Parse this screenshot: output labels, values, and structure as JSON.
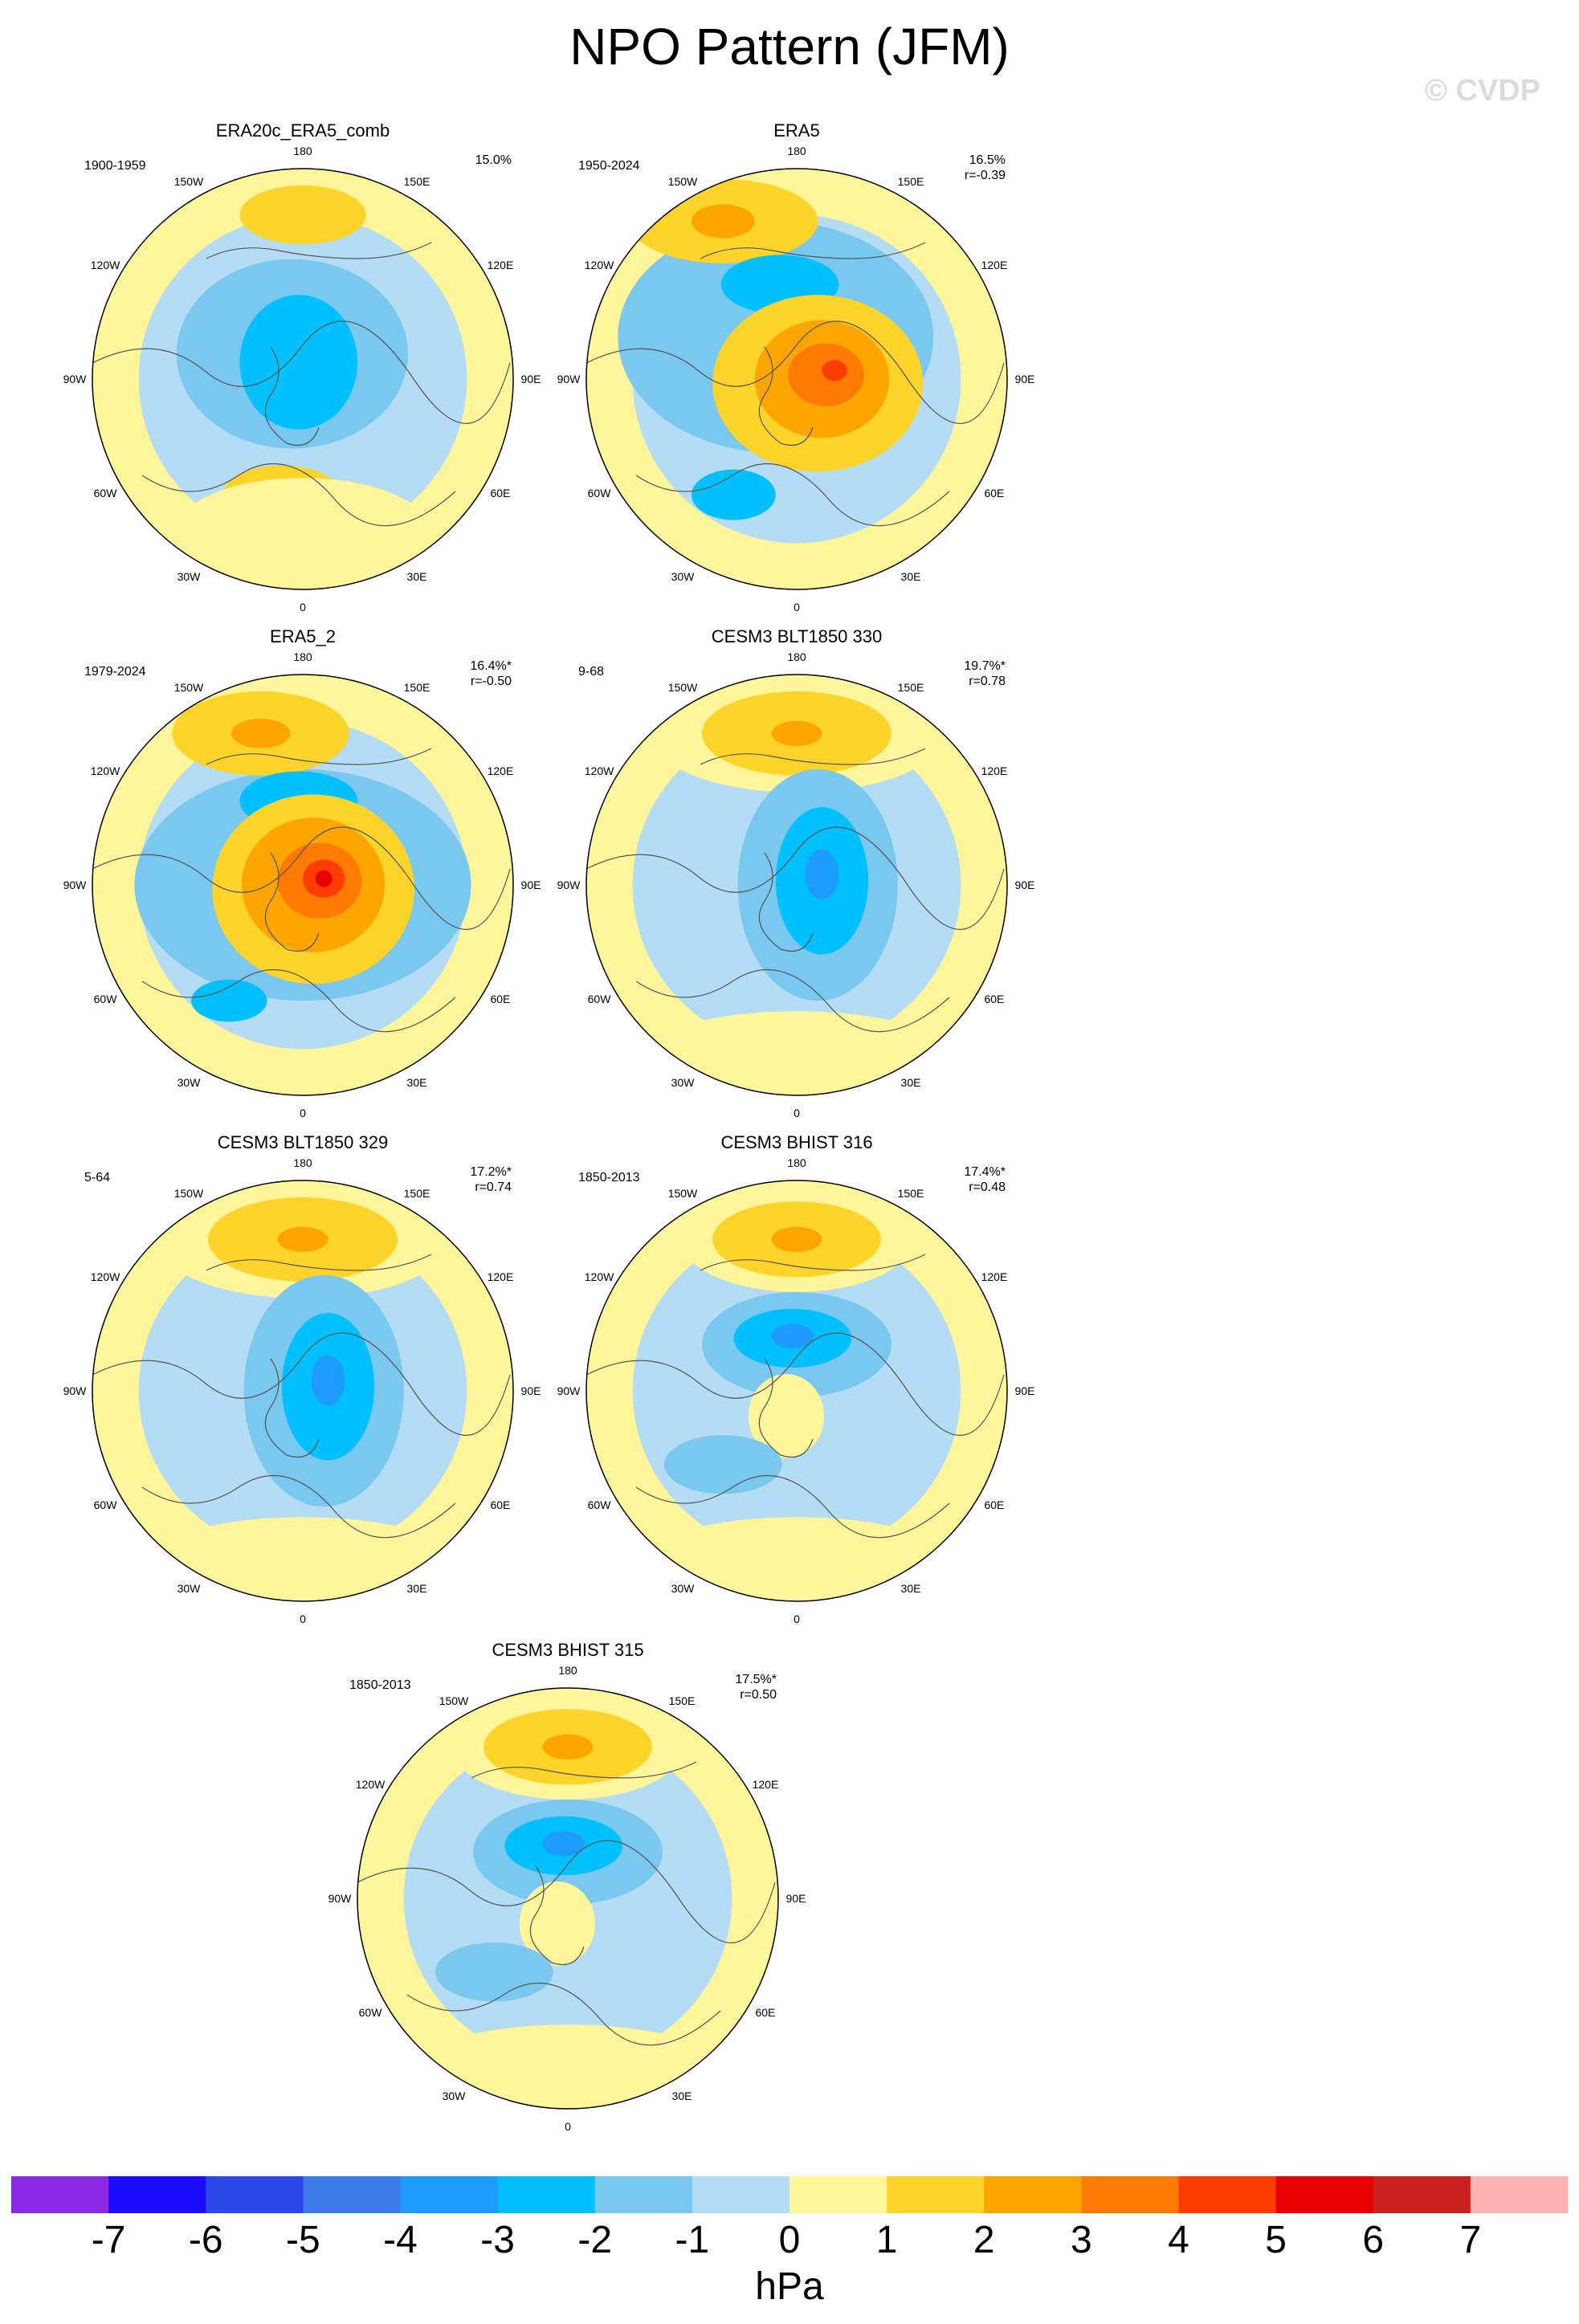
{
  "title": "NPO Pattern (JFM)",
  "watermark": "© CVDP",
  "lon_labels": [
    "180",
    "150E",
    "120E",
    "90E",
    "60E",
    "30E",
    "0",
    "30W",
    "60W",
    "90W",
    "120W",
    "150W"
  ],
  "panels": [
    {
      "title": "ERA20c_ERA5_comb",
      "period": "1900-1959",
      "pct": "15.0%",
      "r": "",
      "pattern": "a"
    },
    {
      "title": "ERA5",
      "period": "1950-2024",
      "pct": "16.5%",
      "r": "r=-0.39",
      "pattern": "b"
    },
    {
      "title": "ERA5_2",
      "period": "1979-2024",
      "pct": "16.4%*",
      "r": "r=-0.50",
      "pattern": "b2"
    },
    {
      "title": "CESM3 BLT1850 330",
      "period": "9-68",
      "pct": "19.7%*",
      "r": "r=0.78",
      "pattern": "c"
    },
    {
      "title": "CESM3 BLT1850 329",
      "period": "5-64",
      "pct": "17.2%*",
      "r": "r=0.74",
      "pattern": "c"
    },
    {
      "title": "CESM3 BHIST 316",
      "period": "1850-2013",
      "pct": "17.4%*",
      "r": "r=0.48",
      "pattern": "d"
    },
    {
      "title": "CESM3 BHIST 315",
      "period": "1850-2013",
      "pct": "17.5%*",
      "r": "r=0.50",
      "pattern": "d"
    }
  ],
  "colorbar": {
    "units": "hPa",
    "tick_labels": [
      "-7",
      "-6",
      "-5",
      "-4",
      "-3",
      "-2",
      "-1",
      "0",
      "1",
      "2",
      "3",
      "4",
      "5",
      "6",
      "7"
    ],
    "colors": [
      "#8a2be2",
      "#1a0dff",
      "#2a48e8",
      "#3a7be8",
      "#1e9bff",
      "#00c0ff",
      "#7ac8f0",
      "#b4dcf4",
      "#fff59a",
      "#ffd42a",
      "#ffa500",
      "#ff7a00",
      "#ff3c00",
      "#e60000",
      "#cc1f1f",
      "#ffb4b4"
    ]
  }
}
